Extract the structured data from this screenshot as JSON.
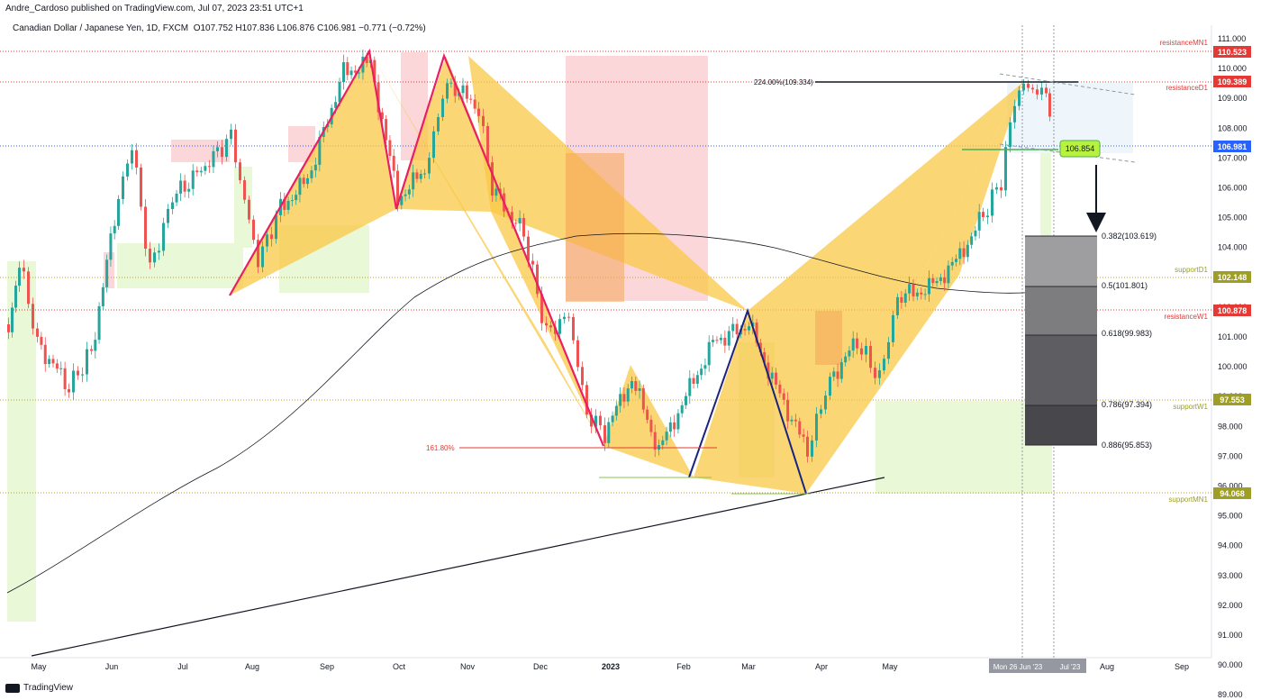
{
  "header": {
    "published": "Andre_Cardoso published on TradingView.com, Jul 07, 2023 23:51 UTC+1",
    "symbol": "Canadian Dollar / Japanese Yen, 1D, FXCM",
    "ohlc": "O107.752 H107.836 L106.876 C106.981 −0.771 (−0.72%)"
  },
  "footer": {
    "brand": "TradingView"
  },
  "price_axis": {
    "ticks": [
      "111.000",
      "110.000",
      "109.000",
      "108.000",
      "107.000",
      "106.000",
      "105.000",
      "104.000",
      "103.000",
      "102.000",
      "101.000",
      "100.000",
      "99.000",
      "98.000",
      "97.000",
      "96.000",
      "95.000",
      "94.000",
      "93.000",
      "92.000",
      "91.000",
      "90.000",
      "89.000"
    ]
  },
  "time_axis": {
    "ticks": [
      "May",
      "Jun",
      "Jul",
      "Aug",
      "Sep",
      "Oct",
      "Nov",
      "Dec",
      "2023",
      "Feb",
      "Mar",
      "Apr",
      "May",
      "Jun",
      "Jul",
      "Aug",
      "Sep"
    ],
    "highlight": [
      "Mon 26 Jun '23",
      "Jul '23"
    ]
  },
  "levels": [
    {
      "label": "resistanceMN1",
      "price": "110.523",
      "color": "#e53935"
    },
    {
      "label": "resistanceD1",
      "price": "109.389",
      "color": "#e53935"
    },
    {
      "label": "",
      "price": "106.981",
      "color": "#2962ff"
    },
    {
      "label": "supportD1",
      "price": "102.148",
      "color": "#9e9e24"
    },
    {
      "label": "resistanceW1",
      "price": "100.878",
      "color": "#e53935"
    },
    {
      "label": "supportW1",
      "price": "97.553",
      "color": "#9e9e24"
    },
    {
      "label": "supportMN1",
      "price": "94.068",
      "color": "#9e9e24"
    }
  ],
  "fib_levels": [
    {
      "label": "0.382(103.619)"
    },
    {
      "label": "0.5(101.801)"
    },
    {
      "label": "0.618(99.983)"
    },
    {
      "label": "0.786(97.394)"
    },
    {
      "label": "0.886(95.853)"
    }
  ],
  "annotations": {
    "ext_top": "224.00%(109.334)",
    "ext_bottom": "161.80%",
    "target_box": "106.854"
  },
  "colors": {
    "bull": "#26a69a",
    "bear": "#ef5350",
    "harmonic": "#f9c846",
    "zigzag_red": "#e91e63",
    "zigzag_blue": "#1a237e"
  }
}
